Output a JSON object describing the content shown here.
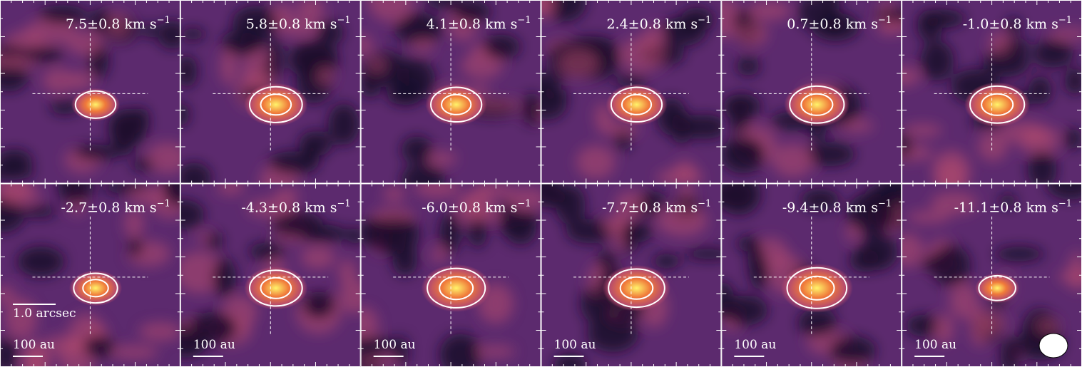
{
  "figure": {
    "rows": 2,
    "cols": 6,
    "velocity_unit_suffix": "km s",
    "velocity_unit_exponent": "−1",
    "panels": [
      {
        "velocity": "7.5±0.8",
        "emission": 0.45,
        "dist_label": ""
      },
      {
        "velocity": "5.8±0.8",
        "emission": 0.8,
        "dist_label": ""
      },
      {
        "velocity": "4.1±0.8",
        "emission": 0.75,
        "dist_label": ""
      },
      {
        "velocity": "2.4±0.8",
        "emission": 0.75,
        "dist_label": ""
      },
      {
        "velocity": "0.7±0.8",
        "emission": 0.85,
        "dist_label": ""
      },
      {
        "velocity": "-1.0±0.8",
        "emission": 0.85,
        "dist_label": ""
      },
      {
        "velocity": "-2.7±0.8",
        "emission": 0.55,
        "dist_label": "100 au",
        "scale_label": "1.0 arcsec"
      },
      {
        "velocity": "-4.3±0.8",
        "emission": 0.8,
        "dist_label": "100 au"
      },
      {
        "velocity": "-6.0±0.8",
        "emission": 0.95,
        "dist_label": "100 au"
      },
      {
        "velocity": "-7.7±0.8",
        "emission": 0.9,
        "dist_label": "100 au"
      },
      {
        "velocity": "-9.4±0.8",
        "emission": 1.0,
        "dist_label": "100 au"
      },
      {
        "velocity": "-11.1±0.8",
        "emission": 0.35,
        "dist_label": "100 au",
        "beam": true
      }
    ]
  },
  "colors": {
    "background_dark": "#1a0a2a",
    "background_mid": "#5c2a6e",
    "emission_low": "#b54a6e",
    "emission_mid": "#f07a3a",
    "emission_peak": "#fff36a",
    "contour": "#ffffff",
    "crosshair": "#ffffff"
  }
}
